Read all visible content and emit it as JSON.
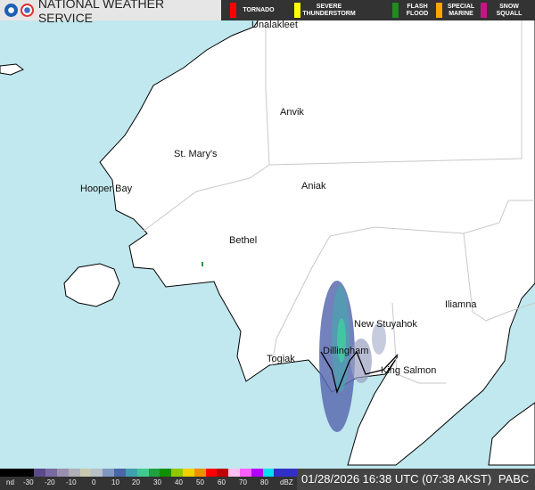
{
  "header": {
    "title": "NATIONAL WEATHER SERVICE",
    "alerts": [
      {
        "label": "TORNADO",
        "color": "#ff0000"
      },
      {
        "label": "SEVERE THUNDERSTORM",
        "color": "#ffff00"
      },
      {
        "label": "FLASH FLOOD",
        "color": "#228b22"
      },
      {
        "label": "SPECIAL MARINE",
        "color": "#ffa500"
      },
      {
        "label": "SNOW SQUALL",
        "color": "#c71585"
      }
    ]
  },
  "map": {
    "colors": {
      "ocean": "#c0e8ee",
      "land": "#ffffff",
      "borders": "#c8c8c8"
    },
    "cities": [
      {
        "name": "Unalakleet"
      },
      {
        "name": "Anvik"
      },
      {
        "name": "St. Mary's"
      },
      {
        "name": "Hooper Bay"
      },
      {
        "name": "Aniak"
      },
      {
        "name": "Bethel"
      },
      {
        "name": "New Stuyahok"
      },
      {
        "name": "Iliamna"
      },
      {
        "name": "Dillingham"
      },
      {
        "name": "Togiak"
      },
      {
        "name": "King Salmon"
      }
    ]
  },
  "legend": {
    "ticks": [
      "nd",
      "-30",
      "-20",
      "-10",
      "0",
      "10",
      "20",
      "30",
      "40",
      "50",
      "60",
      "70",
      "80",
      "dBZ"
    ]
  },
  "footer": {
    "timestamp": "01/28/2026 16:38 UTC (07:38 AKST)",
    "station": "PABC"
  }
}
